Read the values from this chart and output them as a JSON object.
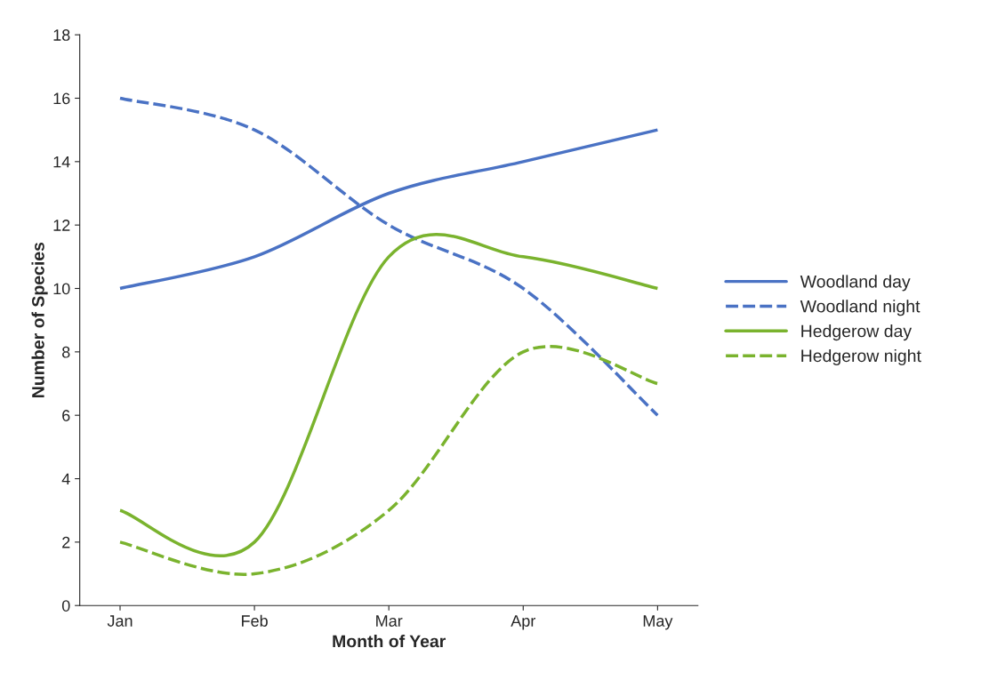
{
  "chart_data": {
    "type": "line",
    "xlabel": "Month of Year",
    "ylabel": "Number of Species",
    "categories": [
      "Jan",
      "Feb",
      "Mar",
      "Apr",
      "May"
    ],
    "series": [
      {
        "name": "Woodland day",
        "color": "#4a72c4",
        "line_style": "solid",
        "values": [
          10,
          11,
          13,
          14,
          15
        ]
      },
      {
        "name": "Woodland night",
        "color": "#4a72c4",
        "line_style": "dashed",
        "values": [
          16,
          15,
          12,
          10,
          6
        ]
      },
      {
        "name": "Hedgerow day",
        "color": "#7ab32e",
        "line_style": "solid",
        "values": [
          3,
          2,
          11,
          11,
          10
        ]
      },
      {
        "name": "Hedgerow night",
        "color": "#7ab32e",
        "line_style": "dashed",
        "values": [
          2,
          1,
          3,
          8,
          7
        ]
      }
    ],
    "ylim": [
      0,
      18
    ],
    "yticks": [
      0,
      2,
      4,
      6,
      8,
      10,
      12,
      14,
      16,
      18
    ],
    "grid": false,
    "legend": "right",
    "marker": "none"
  }
}
